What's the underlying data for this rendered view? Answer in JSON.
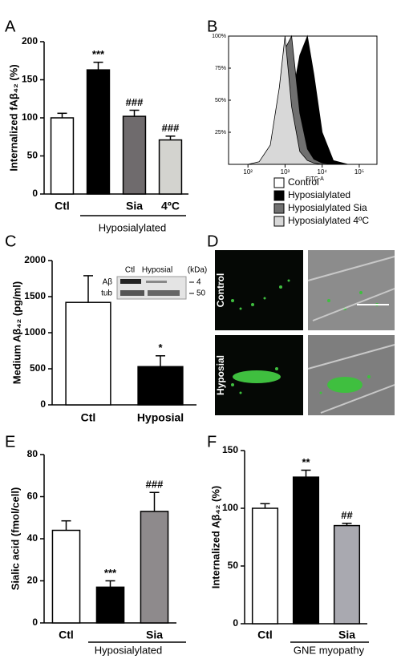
{
  "chart_data": [
    {
      "panel": "A",
      "type": "bar",
      "y_label": "Internalized fAβ₄₂ (%)",
      "categories": [
        "Ctl",
        null,
        "Sia",
        "4ºC"
      ],
      "group_label": "Hyposialylated",
      "values": [
        100,
        163,
        102,
        71
      ],
      "errors": [
        6,
        10,
        8,
        5
      ],
      "annotations": [
        null,
        "***",
        "###",
        "###"
      ],
      "colors": [
        "#ffffff",
        "#000000",
        "#6f6b6d",
        "#d3d3cf"
      ],
      "ylim": [
        0,
        200
      ],
      "yticks": [
        0,
        50,
        100,
        150,
        200
      ]
    },
    {
      "panel": "B",
      "type": "area",
      "x_label": "FITC-A",
      "xlog": true,
      "x": [
        100,
        200,
        400,
        700,
        1000,
        1500,
        2500,
        4000,
        6000,
        10000,
        20000,
        50000
      ],
      "series": [
        {
          "name": "Control",
          "color": "#ffffff",
          "values": [
            0,
            1,
            8,
            45,
            95,
            80,
            25,
            8,
            3,
            1,
            0,
            0
          ]
        },
        {
          "name": "Hyposialylated",
          "color": "#000000",
          "values": [
            0,
            0,
            1,
            5,
            20,
            50,
            85,
            100,
            70,
            25,
            3,
            0
          ]
        },
        {
          "name": "Hyposialylated Sia",
          "color": "#707070",
          "values": [
            0,
            1,
            5,
            35,
            90,
            100,
            40,
            12,
            4,
            1,
            0,
            0
          ]
        },
        {
          "name": "Hyposialylated 4ºC",
          "color": "#d8d8d8",
          "values": [
            0,
            2,
            15,
            60,
            100,
            45,
            10,
            3,
            1,
            0,
            0,
            0
          ]
        }
      ],
      "xlim": [
        30,
        300000
      ],
      "xticks": [
        {
          "value": 100,
          "label": "10²"
        },
        {
          "value": 1000,
          "label": "10³"
        },
        {
          "value": 10000,
          "label": "10⁴"
        },
        {
          "value": 100000,
          "label": "10⁵"
        }
      ],
      "ylim": [
        0,
        100
      ],
      "yticks": [
        {
          "value": 25,
          "label": "25%"
        },
        {
          "value": 50,
          "label": "50%"
        },
        {
          "value": 75,
          "label": "75%"
        },
        {
          "value": 100,
          "label": "100%"
        }
      ]
    },
    {
      "panel": "C",
      "type": "bar",
      "y_label": "Medium Aβ₄₂ (pg/ml)",
      "categories": [
        "Ctl",
        "Hyposial"
      ],
      "values": [
        1420,
        530
      ],
      "errors": [
        370,
        150
      ],
      "annotations": [
        null,
        "*"
      ],
      "colors": [
        "#ffffff",
        "#000000"
      ],
      "ylim": [
        0,
        2000
      ],
      "yticks": [
        0,
        500,
        1000,
        1500,
        2000
      ],
      "inset": {
        "lanes": [
          "Ctl",
          "Hyposial"
        ],
        "unit": "(kDa)",
        "rows": [
          "Aβ",
          "tub"
        ],
        "markers": [
          4,
          50
        ]
      }
    },
    {
      "panel": "D",
      "type": "image",
      "row_labels": [
        "Control",
        "Hyposial"
      ]
    },
    {
      "panel": "E",
      "type": "bar",
      "y_label": "Sialic acid (fmol/cell)",
      "categories": [
        "Ctl",
        null,
        "Sia"
      ],
      "group_label": "Hyposialylated",
      "values": [
        44,
        17,
        53
      ],
      "errors": [
        4.5,
        3,
        9
      ],
      "annotations": [
        null,
        "***",
        "###"
      ],
      "colors": [
        "#ffffff",
        "#000000",
        "#8e8a8c"
      ],
      "ylim": [
        0,
        80
      ],
      "yticks": [
        0,
        20,
        40,
        60,
        80
      ]
    },
    {
      "panel": "F",
      "type": "bar",
      "y_label": "Internalized Aβ₄₂ (%)",
      "categories": [
        "Ctl",
        null,
        "Sia"
      ],
      "group_label": "GNE myopathy",
      "values": [
        100,
        127,
        85
      ],
      "errors": [
        4,
        6,
        2
      ],
      "annotations": [
        null,
        "**",
        "##"
      ],
      "colors": [
        "#ffffff",
        "#000000",
        "#a9a9b0"
      ],
      "ylim": [
        0,
        150
      ],
      "yticks": [
        0,
        50,
        100,
        150
      ]
    }
  ]
}
